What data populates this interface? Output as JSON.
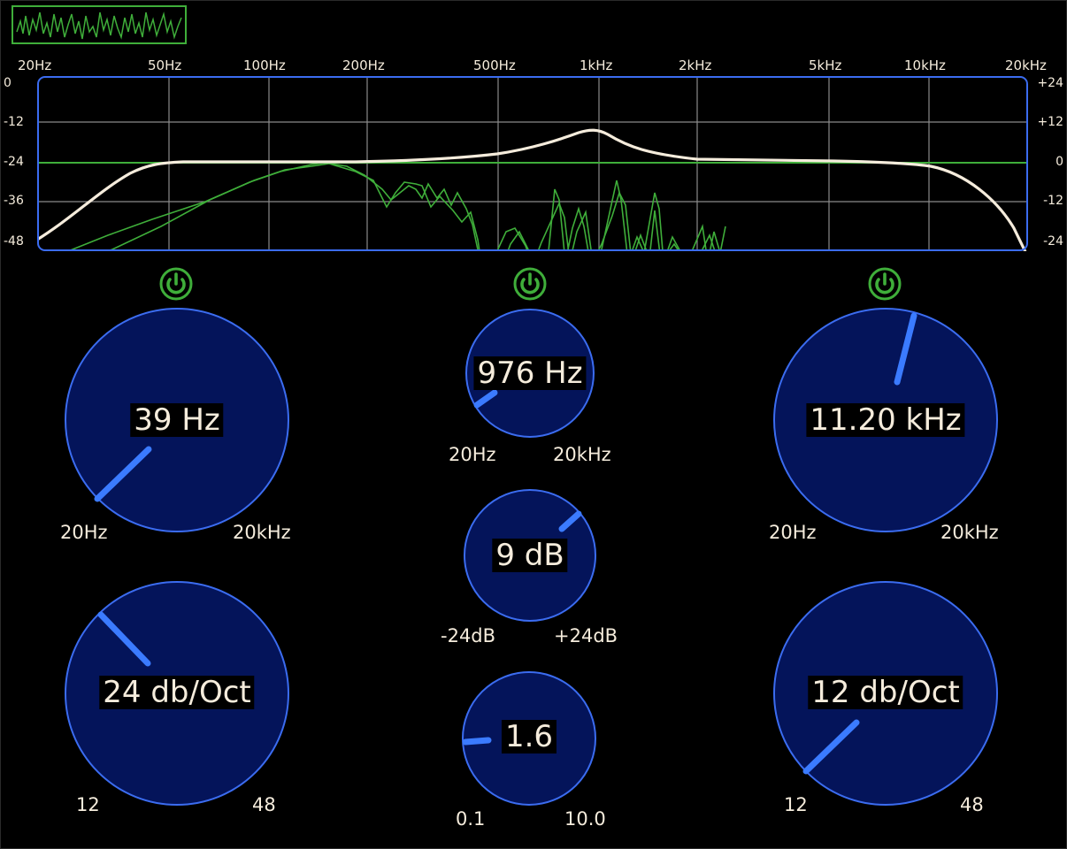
{
  "freq_labels": [
    "20Hz",
    "50Hz",
    "100Hz",
    "200Hz",
    "500Hz",
    "1kHz",
    "2kHz",
    "5kHz",
    "10kHz",
    "20kHz"
  ],
  "db_left_labels": [
    "0",
    "-12",
    "-24",
    "-36",
    "-48"
  ],
  "db_right_labels": [
    "+24",
    "+12",
    "0",
    "-12",
    "-24"
  ],
  "colors": {
    "accent": "#3b6cf0",
    "knob_fill": "#04145a",
    "power_green": "#3fae3a",
    "response_curve": "#f5ecdc",
    "spectrum": "#3fae3a"
  },
  "icons": {
    "power": "power-icon"
  },
  "low_cut": {
    "frequency": {
      "value": "39 Hz",
      "min": "20Hz",
      "max": "20kHz"
    },
    "slope": {
      "value": "24 db/Oct",
      "min": "12",
      "max": "48"
    }
  },
  "peak": {
    "frequency": {
      "value": "976 Hz",
      "min": "20Hz",
      "max": "20kHz"
    },
    "gain": {
      "value": "9 dB",
      "min": "-24dB",
      "max": "+24dB"
    },
    "quality": {
      "value": "1.6",
      "min": "0.1",
      "max": "10.0"
    }
  },
  "high_cut": {
    "frequency": {
      "value": "11.20 kHz",
      "min": "20Hz",
      "max": "20kHz"
    },
    "slope": {
      "value": "12 db/Oct",
      "min": "12",
      "max": "48"
    }
  }
}
